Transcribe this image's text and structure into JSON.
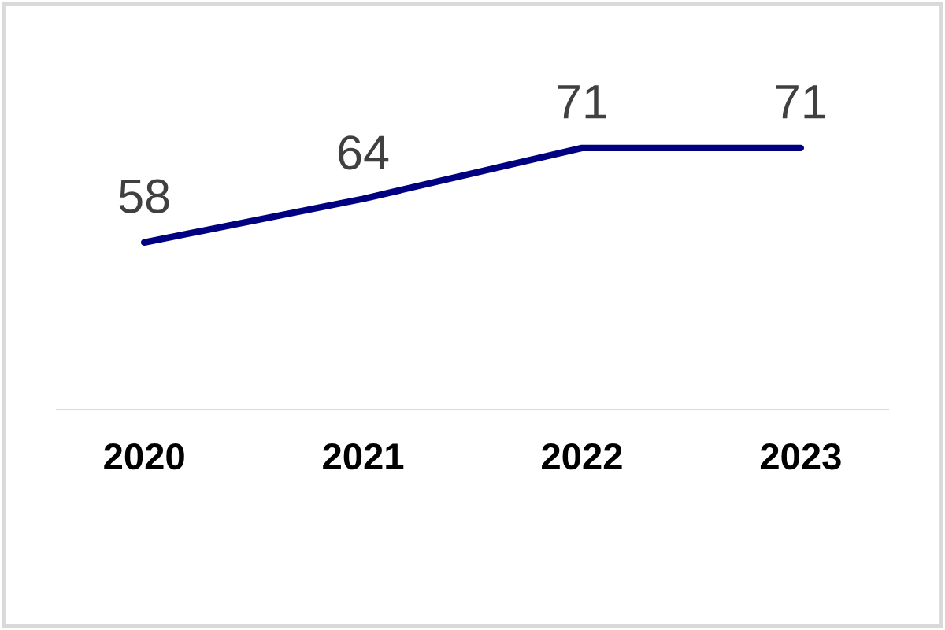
{
  "chart_data": {
    "type": "line",
    "categories": [
      "2020",
      "2021",
      "2022",
      "2023"
    ],
    "series": [
      {
        "color": "#000080",
        "values": [
          58,
          64,
          71,
          71
        ]
      }
    ],
    "data_labels": true,
    "grid": false,
    "tick_labels": "x",
    "marker": "none",
    "line_style": "solid"
  }
}
